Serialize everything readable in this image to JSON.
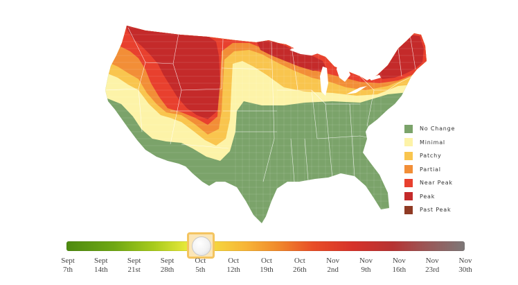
{
  "legend": {
    "items": [
      {
        "label": "No Change",
        "color": "#7ba36a"
      },
      {
        "label": "Minimal",
        "color": "#fdf3a8"
      },
      {
        "label": "Patchy",
        "color": "#f9c54e"
      },
      {
        "label": "Partial",
        "color": "#f28e37"
      },
      {
        "label": "Near Peak",
        "color": "#e8402e"
      },
      {
        "label": "Peak",
        "color": "#c42a2a"
      },
      {
        "label": "Past Peak",
        "color": "#8f3a24"
      }
    ]
  },
  "timeline": {
    "selected_index": 4,
    "ticks": [
      {
        "line1": "Sept",
        "line2": "7th"
      },
      {
        "line1": "Sept",
        "line2": "14th"
      },
      {
        "line1": "Sept",
        "line2": "21st"
      },
      {
        "line1": "Sept",
        "line2": "28th"
      },
      {
        "line1": "Oct",
        "line2": "5th"
      },
      {
        "line1": "Oct",
        "line2": "12th"
      },
      {
        "line1": "Oct",
        "line2": "19th"
      },
      {
        "line1": "Oct",
        "line2": "26th"
      },
      {
        "line1": "Nov",
        "line2": "2nd"
      },
      {
        "line1": "Nov",
        "line2": "9th"
      },
      {
        "line1": "Nov",
        "line2": "16th"
      },
      {
        "line1": "Nov",
        "line2": "23rd"
      },
      {
        "line1": "Nov",
        "line2": "30th"
      }
    ]
  },
  "map": {
    "zones": [
      {
        "name": "map-zone-no-change",
        "level": "No Change",
        "color": "#7ba36a"
      },
      {
        "name": "map-zone-minimal",
        "level": "Minimal",
        "color": "#fdf3a8"
      },
      {
        "name": "map-zone-patchy",
        "level": "Patchy",
        "color": "#f9c54e"
      },
      {
        "name": "map-zone-partial",
        "level": "Partial",
        "color": "#f28e37"
      },
      {
        "name": "map-zone-near-peak",
        "level": "Near Peak",
        "color": "#e8402e"
      },
      {
        "name": "map-zone-peak",
        "level": "Peak",
        "color": "#c42a2a"
      }
    ]
  }
}
